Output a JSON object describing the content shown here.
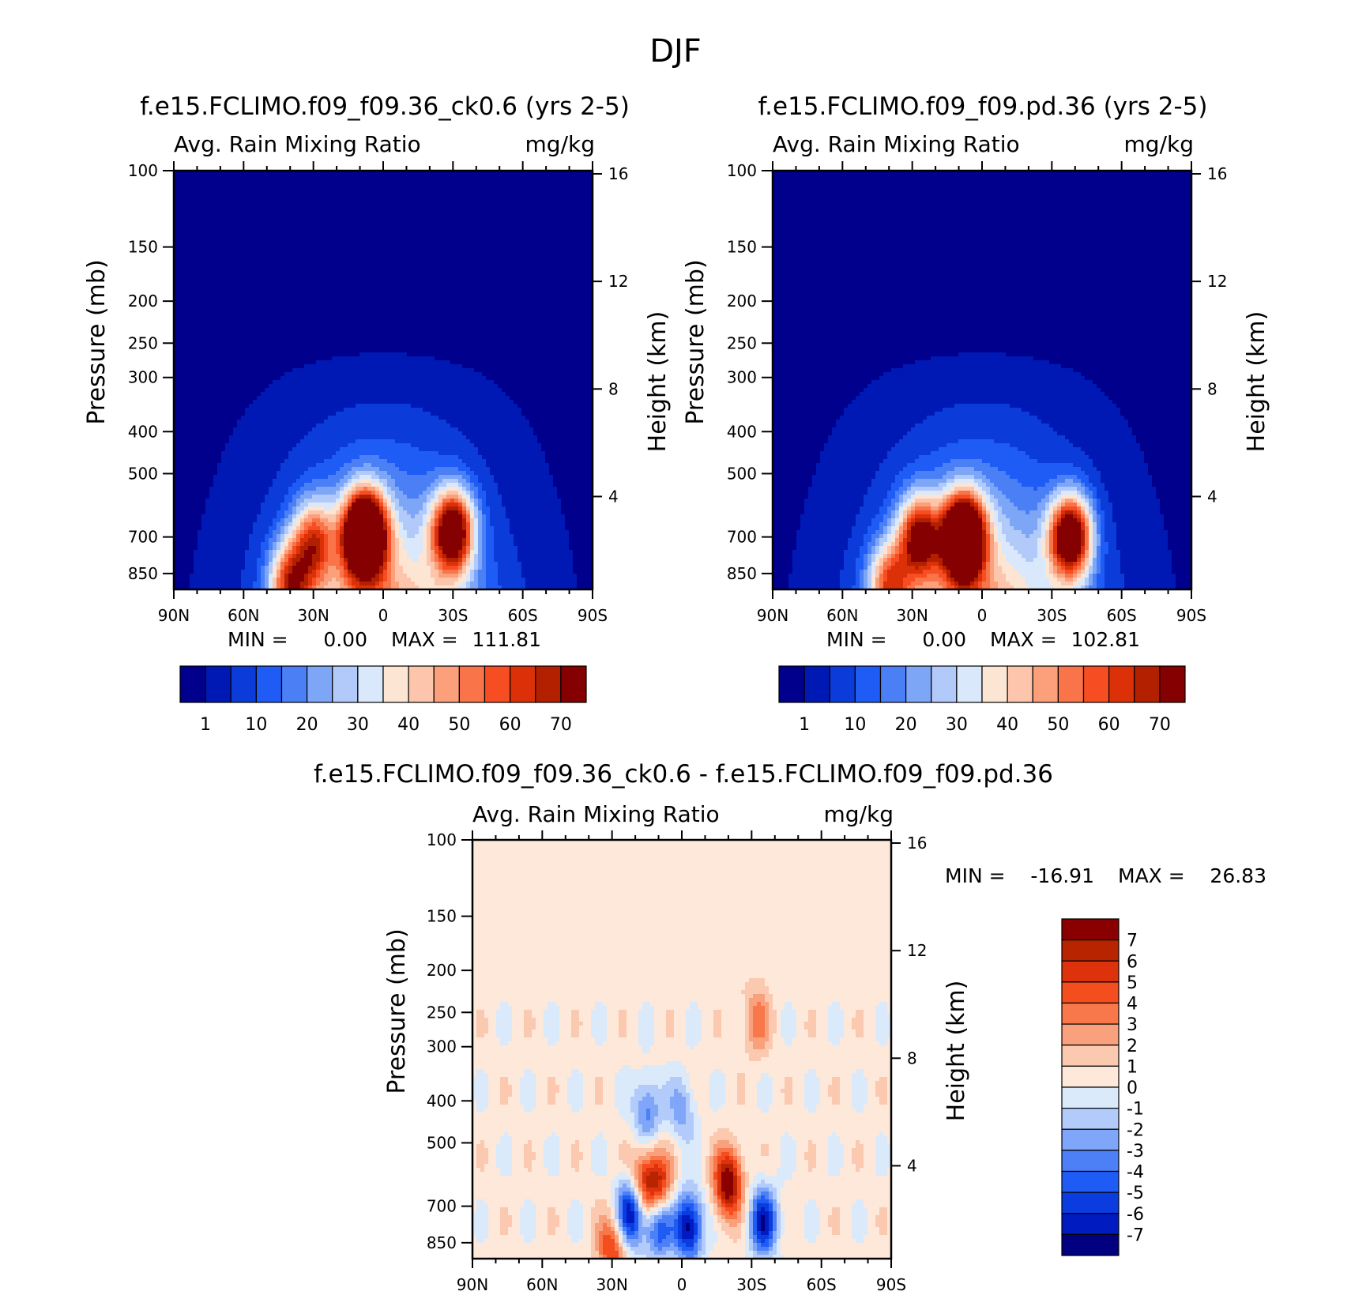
{
  "figure_title": "DJF",
  "colors": {
    "sequential": [
      "#00008c",
      "#0019b4",
      "#0b3bd8",
      "#1e5cf5",
      "#4a7ff6",
      "#7ea6f7",
      "#b2cafa",
      "#d9e8fb",
      "#fde5d4",
      "#fcc5ac",
      "#fba07b",
      "#fa744a",
      "#f64d23",
      "#dc3008",
      "#b32000",
      "#850000"
    ],
    "diverging": [
      "#000080",
      "#001cc0",
      "#0b3ce0",
      "#1e5cf5",
      "#4d80f6",
      "#7fa6f8",
      "#b3cbfa",
      "#daeafb",
      "#fde8d9",
      "#fbc9af",
      "#f9a07c",
      "#f8784c",
      "#f44e1e",
      "#dd320c",
      "#b82400",
      "#8a0000"
    ]
  },
  "chart_data": [
    {
      "type": "heatmap",
      "title": "f.e15.FCLIMO.f09_f09.36_ck0.6 (yrs 2-5)",
      "subtitle_left": "Avg. Rain Mixing Ratio",
      "subtitle_right": "mg/kg",
      "ylabel": "Pressure (mb)",
      "ylabel_right": "Height (km)",
      "x_ticks": [
        "90N",
        "60N",
        "30N",
        "0",
        "30S",
        "60S",
        "90S"
      ],
      "y_ticks": [
        "100",
        "150",
        "200",
        "250",
        "300",
        "400",
        "500",
        "700",
        "850"
      ],
      "y_values": [
        100,
        150,
        200,
        250,
        300,
        400,
        500,
        700,
        850
      ],
      "ylim": [
        100,
        925
      ],
      "y_scale": "log",
      "right_ticks": [
        "16",
        "12",
        "8",
        "4"
      ],
      "right_values": [
        16,
        12,
        8,
        4
      ],
      "min_label": "MIN =",
      "min_value": "0.00",
      "max_label": "MAX =",
      "max_value": "111.81",
      "colorbar_labels": [
        "1",
        "10",
        "20",
        "30",
        "40",
        "50",
        "60",
        "70"
      ],
      "features": [
        {
          "lat": 8,
          "p": 690,
          "value": 110
        },
        {
          "lat": -30,
          "p": 680,
          "value": 75
        },
        {
          "lat": 30,
          "p": 720,
          "value": 45
        },
        {
          "lat": 40,
          "p": 900,
          "value": 50
        }
      ]
    },
    {
      "type": "heatmap",
      "title": "f.e15.FCLIMO.f09_f09.pd.36 (yrs 2-5)",
      "subtitle_left": "Avg. Rain Mixing Ratio",
      "subtitle_right": "mg/kg",
      "ylabel": "Pressure (mb)",
      "ylabel_right": "Height (km)",
      "x_ticks": [
        "90N",
        "60N",
        "30N",
        "0",
        "30S",
        "60S",
        "90S"
      ],
      "y_ticks": [
        "100",
        "150",
        "200",
        "250",
        "300",
        "400",
        "500",
        "700",
        "850"
      ],
      "y_values": [
        100,
        150,
        200,
        250,
        300,
        400,
        500,
        700,
        850
      ],
      "ylim": [
        100,
        925
      ],
      "y_scale": "log",
      "right_ticks": [
        "16",
        "12",
        "8",
        "4"
      ],
      "right_values": [
        16,
        12,
        8,
        4
      ],
      "min_label": "MIN =",
      "min_value": "0.00",
      "max_label": "MAX =",
      "max_value": "102.81",
      "colorbar_labels": [
        "1",
        "10",
        "20",
        "30",
        "40",
        "50",
        "60",
        "70"
      ],
      "features": [
        {
          "lat": 8,
          "p": 700,
          "value": 102
        },
        {
          "lat": -38,
          "p": 700,
          "value": 80
        },
        {
          "lat": 27,
          "p": 700,
          "value": 60
        },
        {
          "lat": 40,
          "p": 900,
          "value": 45
        }
      ]
    },
    {
      "type": "heatmap",
      "title": "f.e15.FCLIMO.f09_f09.36_ck0.6 - f.e15.FCLIMO.f09_f09.pd.36",
      "subtitle_left": "Avg. Rain Mixing Ratio",
      "subtitle_right": "mg/kg",
      "ylabel": "Pressure (mb)",
      "ylabel_right": "Height (km)",
      "x_ticks": [
        "90N",
        "60N",
        "30N",
        "0",
        "30S",
        "60S",
        "90S"
      ],
      "y_ticks": [
        "100",
        "150",
        "200",
        "250",
        "300",
        "400",
        "500",
        "700",
        "850"
      ],
      "y_values": [
        100,
        150,
        200,
        250,
        300,
        400,
        500,
        700,
        850
      ],
      "ylim": [
        100,
        925
      ],
      "y_scale": "log",
      "right_ticks": [
        "16",
        "12",
        "8",
        "4"
      ],
      "right_values": [
        16,
        12,
        8,
        4
      ],
      "min_label": "MIN =",
      "min_value": "-16.91",
      "max_label": "MAX =",
      "max_value": "26.83",
      "colorbar_labels": [
        "7",
        "6",
        "5",
        "4",
        "3",
        "2",
        "1",
        "0",
        "-1",
        "-2",
        "-3",
        "-4",
        "-5",
        "-6",
        "-7"
      ],
      "features": [
        {
          "lat": -20,
          "p": 620,
          "value": 8
        },
        {
          "lat": 10,
          "p": 630,
          "value": 6
        },
        {
          "lat": 17,
          "p": 620,
          "value": 5
        },
        {
          "lat": 30,
          "p": 880,
          "value": 5
        },
        {
          "lat": 15,
          "p": 420,
          "value": -4
        },
        {
          "lat": 0,
          "p": 420,
          "value": -3
        },
        {
          "lat": 22,
          "p": 720,
          "value": -8
        },
        {
          "lat": 10,
          "p": 770,
          "value": -6
        },
        {
          "lat": -3,
          "p": 780,
          "value": -8
        },
        {
          "lat": -35,
          "p": 760,
          "value": -7
        },
        {
          "lat": -32,
          "p": 260,
          "value": 3
        }
      ]
    }
  ]
}
